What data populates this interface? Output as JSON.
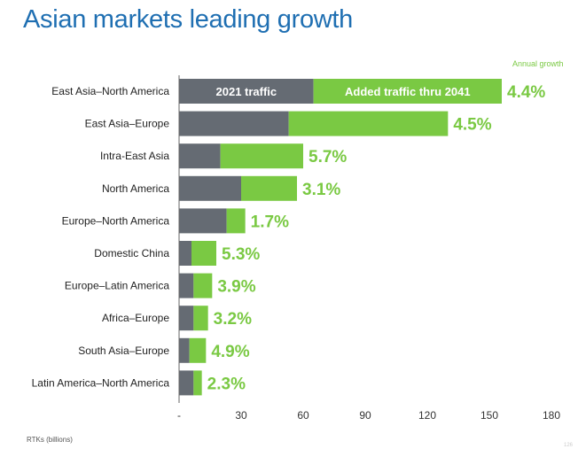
{
  "title": "Asian markets leading growth",
  "growth_header": "Annual growth",
  "footnote": "RTKs (billions)",
  "page_number": "126",
  "colors": {
    "title": "#1f6fb2",
    "base": "#656b73",
    "added": "#7ac943",
    "growth_text": "#7ac943",
    "axis": "#666666"
  },
  "chart_data": {
    "type": "bar",
    "orientation": "horizontal",
    "stacked": true,
    "title": "Asian markets leading growth",
    "xlabel": "RTKs (billions)",
    "ylabel": "",
    "xlim": [
      0,
      180
    ],
    "ticks": [
      0,
      30,
      60,
      90,
      120,
      150,
      180
    ],
    "tick_labels": [
      "-",
      "30",
      "60",
      "90",
      "120",
      "150",
      "180"
    ],
    "grid": false,
    "categories": [
      "East Asia–North America",
      "East Asia–Europe",
      "Intra-East Asia",
      "North America",
      "Europe–North America",
      "Domestic China",
      "Europe–Latin America",
      "Africa–Europe",
      "South Asia–Europe",
      "Latin America–North America"
    ],
    "series": [
      {
        "name": "2021 traffic",
        "values": [
          65,
          53,
          20,
          30,
          23,
          6,
          7,
          7,
          5,
          7
        ]
      },
      {
        "name": "Added traffic thru 2041",
        "values": [
          91,
          77,
          40,
          27,
          9,
          12,
          9,
          7,
          8,
          4
        ]
      }
    ],
    "annual_growth": [
      "4.4%",
      "4.5%",
      "5.7%",
      "3.1%",
      "1.7%",
      "5.3%",
      "3.9%",
      "3.2%",
      "4.9%",
      "2.3%"
    ],
    "in_bar_labels": [
      "2021 traffic",
      "Added traffic thru 2041"
    ]
  }
}
